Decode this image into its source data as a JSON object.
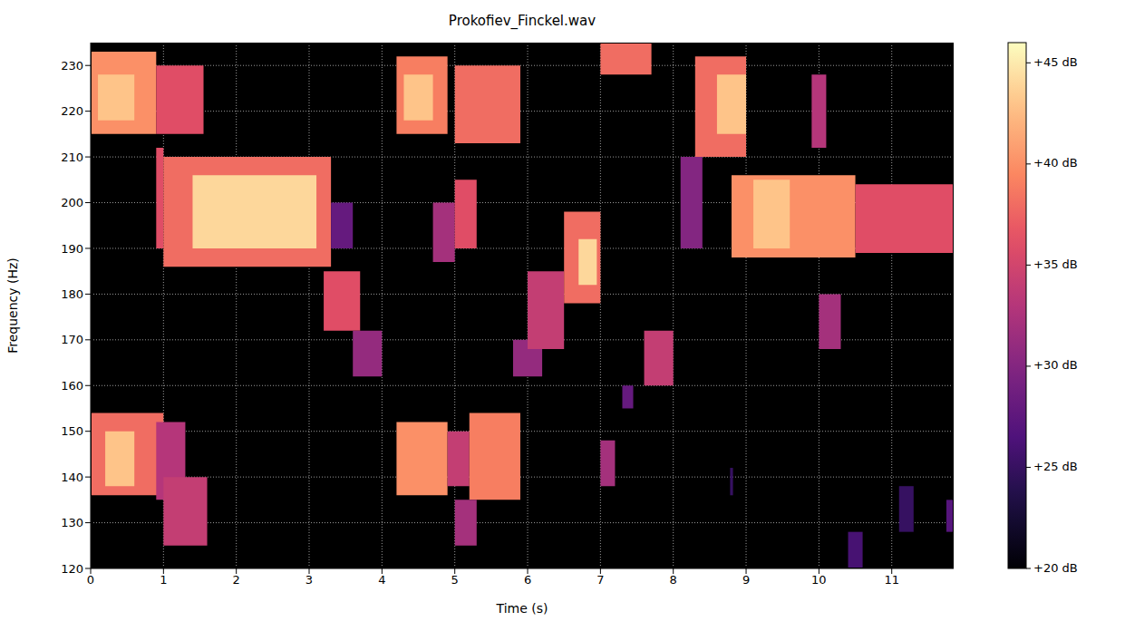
{
  "chart_data": {
    "type": "heatmap",
    "title": "Prokofiev_Finckel.wav",
    "x_label": "Time (s)",
    "y_label": "Frequency (Hz)",
    "xlim": [
      0,
      11.85
    ],
    "ylim": [
      120,
      235
    ],
    "xticks": [
      0,
      1,
      2,
      3,
      4,
      5,
      6,
      7,
      8,
      9,
      10,
      11
    ],
    "yticks": [
      120,
      130,
      140,
      150,
      160,
      170,
      180,
      190,
      200,
      210,
      220,
      230
    ],
    "grid": true,
    "cells": [
      {
        "x0": 0,
        "x1": 0.9,
        "y0": 215,
        "y1": 233,
        "value": 40
      },
      {
        "x0": 0.1,
        "x1": 0.6,
        "y0": 218,
        "y1": 228,
        "value": 43
      },
      {
        "x0": 0.9,
        "x1": 1.55,
        "y0": 215,
        "y1": 230,
        "value": 36
      },
      {
        "x0": 0,
        "x1": 1,
        "y0": 136,
        "y1": 154,
        "value": 38
      },
      {
        "x0": 0.2,
        "x1": 0.6,
        "y0": 138,
        "y1": 150,
        "value": 43
      },
      {
        "x0": 0.9,
        "x1": 1.3,
        "y0": 135,
        "y1": 152,
        "value": 33
      },
      {
        "x0": 1,
        "x1": 1.6,
        "y0": 125,
        "y1": 140,
        "value": 34
      },
      {
        "x0": 0.9,
        "x1": 1,
        "y0": 190,
        "y1": 212,
        "value": 36
      },
      {
        "x0": 1,
        "x1": 3.3,
        "y0": 186,
        "y1": 210,
        "value": 38
      },
      {
        "x0": 1.4,
        "x1": 3.1,
        "y0": 190,
        "y1": 206,
        "value": 44
      },
      {
        "x0": 3.3,
        "x1": 3.6,
        "y0": 190,
        "y1": 200,
        "value": 28
      },
      {
        "x0": 3.2,
        "x1": 3.7,
        "y0": 172,
        "y1": 185,
        "value": 36
      },
      {
        "x0": 3.6,
        "x1": 4,
        "y0": 162,
        "y1": 172,
        "value": 31
      },
      {
        "x0": 4.2,
        "x1": 4.9,
        "y0": 215,
        "y1": 232,
        "value": 39
      },
      {
        "x0": 4.3,
        "x1": 4.7,
        "y0": 218,
        "y1": 228,
        "value": 43
      },
      {
        "x0": 5,
        "x1": 5.9,
        "y0": 213,
        "y1": 230,
        "value": 38
      },
      {
        "x0": 4.2,
        "x1": 4.9,
        "y0": 136,
        "y1": 152,
        "value": 40
      },
      {
        "x0": 4.9,
        "x1": 5.2,
        "y0": 138,
        "y1": 150,
        "value": 34
      },
      {
        "x0": 5.2,
        "x1": 5.9,
        "y0": 135,
        "y1": 154,
        "value": 39
      },
      {
        "x0": 5,
        "x1": 5.3,
        "y0": 125,
        "y1": 135,
        "value": 32
      },
      {
        "x0": 4.7,
        "x1": 5,
        "y0": 187,
        "y1": 200,
        "value": 32
      },
      {
        "x0": 5,
        "x1": 5.3,
        "y0": 190,
        "y1": 205,
        "value": 36
      },
      {
        "x0": 5.8,
        "x1": 6.2,
        "y0": 162,
        "y1": 170,
        "value": 31
      },
      {
        "x0": 6,
        "x1": 6.5,
        "y0": 168,
        "y1": 185,
        "value": 34
      },
      {
        "x0": 6.5,
        "x1": 7,
        "y0": 178,
        "y1": 198,
        "value": 38
      },
      {
        "x0": 6.7,
        "x1": 6.95,
        "y0": 182,
        "y1": 192,
        "value": 44
      },
      {
        "x0": 7,
        "x1": 7.2,
        "y0": 138,
        "y1": 148,
        "value": 32
      },
      {
        "x0": 7,
        "x1": 7.7,
        "y0": 228,
        "y1": 235,
        "value": 38
      },
      {
        "x0": 7.3,
        "x1": 7.45,
        "y0": 155,
        "y1": 160,
        "value": 28
      },
      {
        "x0": 7.6,
        "x1": 8,
        "y0": 160,
        "y1": 172,
        "value": 34
      },
      {
        "x0": 8.1,
        "x1": 8.4,
        "y0": 190,
        "y1": 210,
        "value": 30
      },
      {
        "x0": 8.3,
        "x1": 9,
        "y0": 210,
        "y1": 232,
        "value": 38
      },
      {
        "x0": 8.6,
        "x1": 9,
        "y0": 215,
        "y1": 228,
        "value": 43
      },
      {
        "x0": 8.8,
        "x1": 10.5,
        "y0": 188,
        "y1": 206,
        "value": 40
      },
      {
        "x0": 10.5,
        "x1": 11.85,
        "y0": 189,
        "y1": 204,
        "value": 36
      },
      {
        "x0": 9.1,
        "x1": 9.6,
        "y0": 190,
        "y1": 205,
        "value": 43
      },
      {
        "x0": 9.9,
        "x1": 10.1,
        "y0": 212,
        "y1": 228,
        "value": 33
      },
      {
        "x0": 10,
        "x1": 10.3,
        "y0": 168,
        "y1": 180,
        "value": 32
      },
      {
        "x0": 10.4,
        "x1": 10.6,
        "y0": 120,
        "y1": 128,
        "value": 26
      },
      {
        "x0": 11.1,
        "x1": 11.3,
        "y0": 128,
        "y1": 138,
        "value": 25
      },
      {
        "x0": 11.75,
        "x1": 11.85,
        "y0": 128,
        "y1": 135,
        "value": 27
      },
      {
        "x0": 8.78,
        "x1": 8.82,
        "y0": 136,
        "y1": 142,
        "value": 25
      }
    ],
    "colorbar": {
      "range": [
        20,
        46
      ],
      "ticks": [
        {
          "value": 20,
          "label": "+20 dB"
        },
        {
          "value": 25,
          "label": "+25 dB"
        },
        {
          "value": 30,
          "label": "+30 dB"
        },
        {
          "value": 35,
          "label": "+35 dB"
        },
        {
          "value": 40,
          "label": "+40 dB"
        },
        {
          "value": 45,
          "label": "+45 dB"
        }
      ]
    }
  }
}
